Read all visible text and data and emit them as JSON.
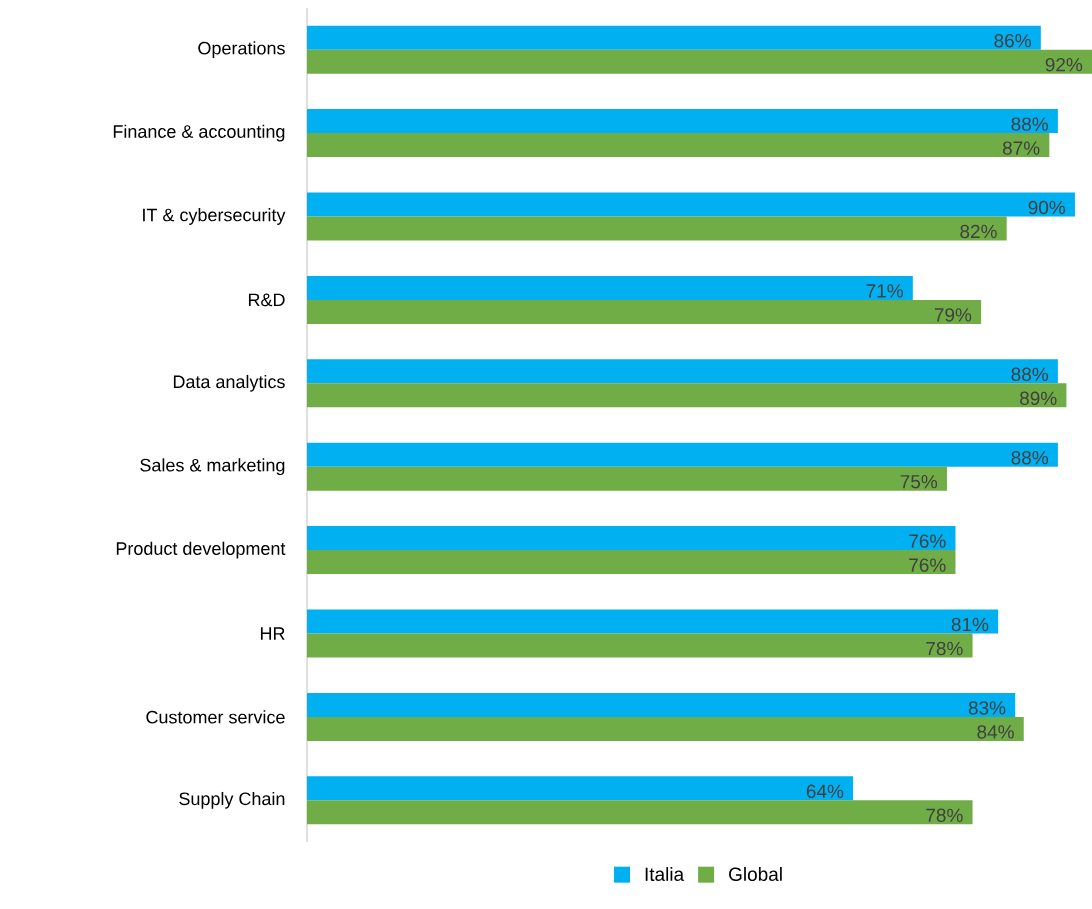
{
  "chart_data": {
    "type": "bar",
    "orientation": "horizontal",
    "legend": "bottom",
    "categories": [
      "Operations",
      "Finance & accounting",
      "IT & cybersecurity",
      "R&D",
      "Data analytics",
      "Sales & marketing",
      "Product development",
      "HR",
      "Customer service",
      "Supply Chain"
    ],
    "series": [
      {
        "name": "Italia",
        "color": "#00b0f0",
        "values": [
          86,
          88,
          90,
          71,
          88,
          88,
          76,
          81,
          83,
          64
        ],
        "value_labels": [
          "86%",
          "88%",
          "90%",
          "71%",
          "88%",
          "88%",
          "76%",
          "81%",
          "83%",
          "64%"
        ]
      },
      {
        "name": "Global",
        "color": "#70ad47",
        "values": [
          92,
          87,
          82,
          79,
          89,
          75,
          76,
          78,
          84,
          78
        ],
        "value_labels": [
          "92%",
          "87%",
          "82%",
          "79%",
          "89%",
          "75%",
          "76%",
          "78%",
          "84%",
          "78%"
        ]
      }
    ]
  }
}
